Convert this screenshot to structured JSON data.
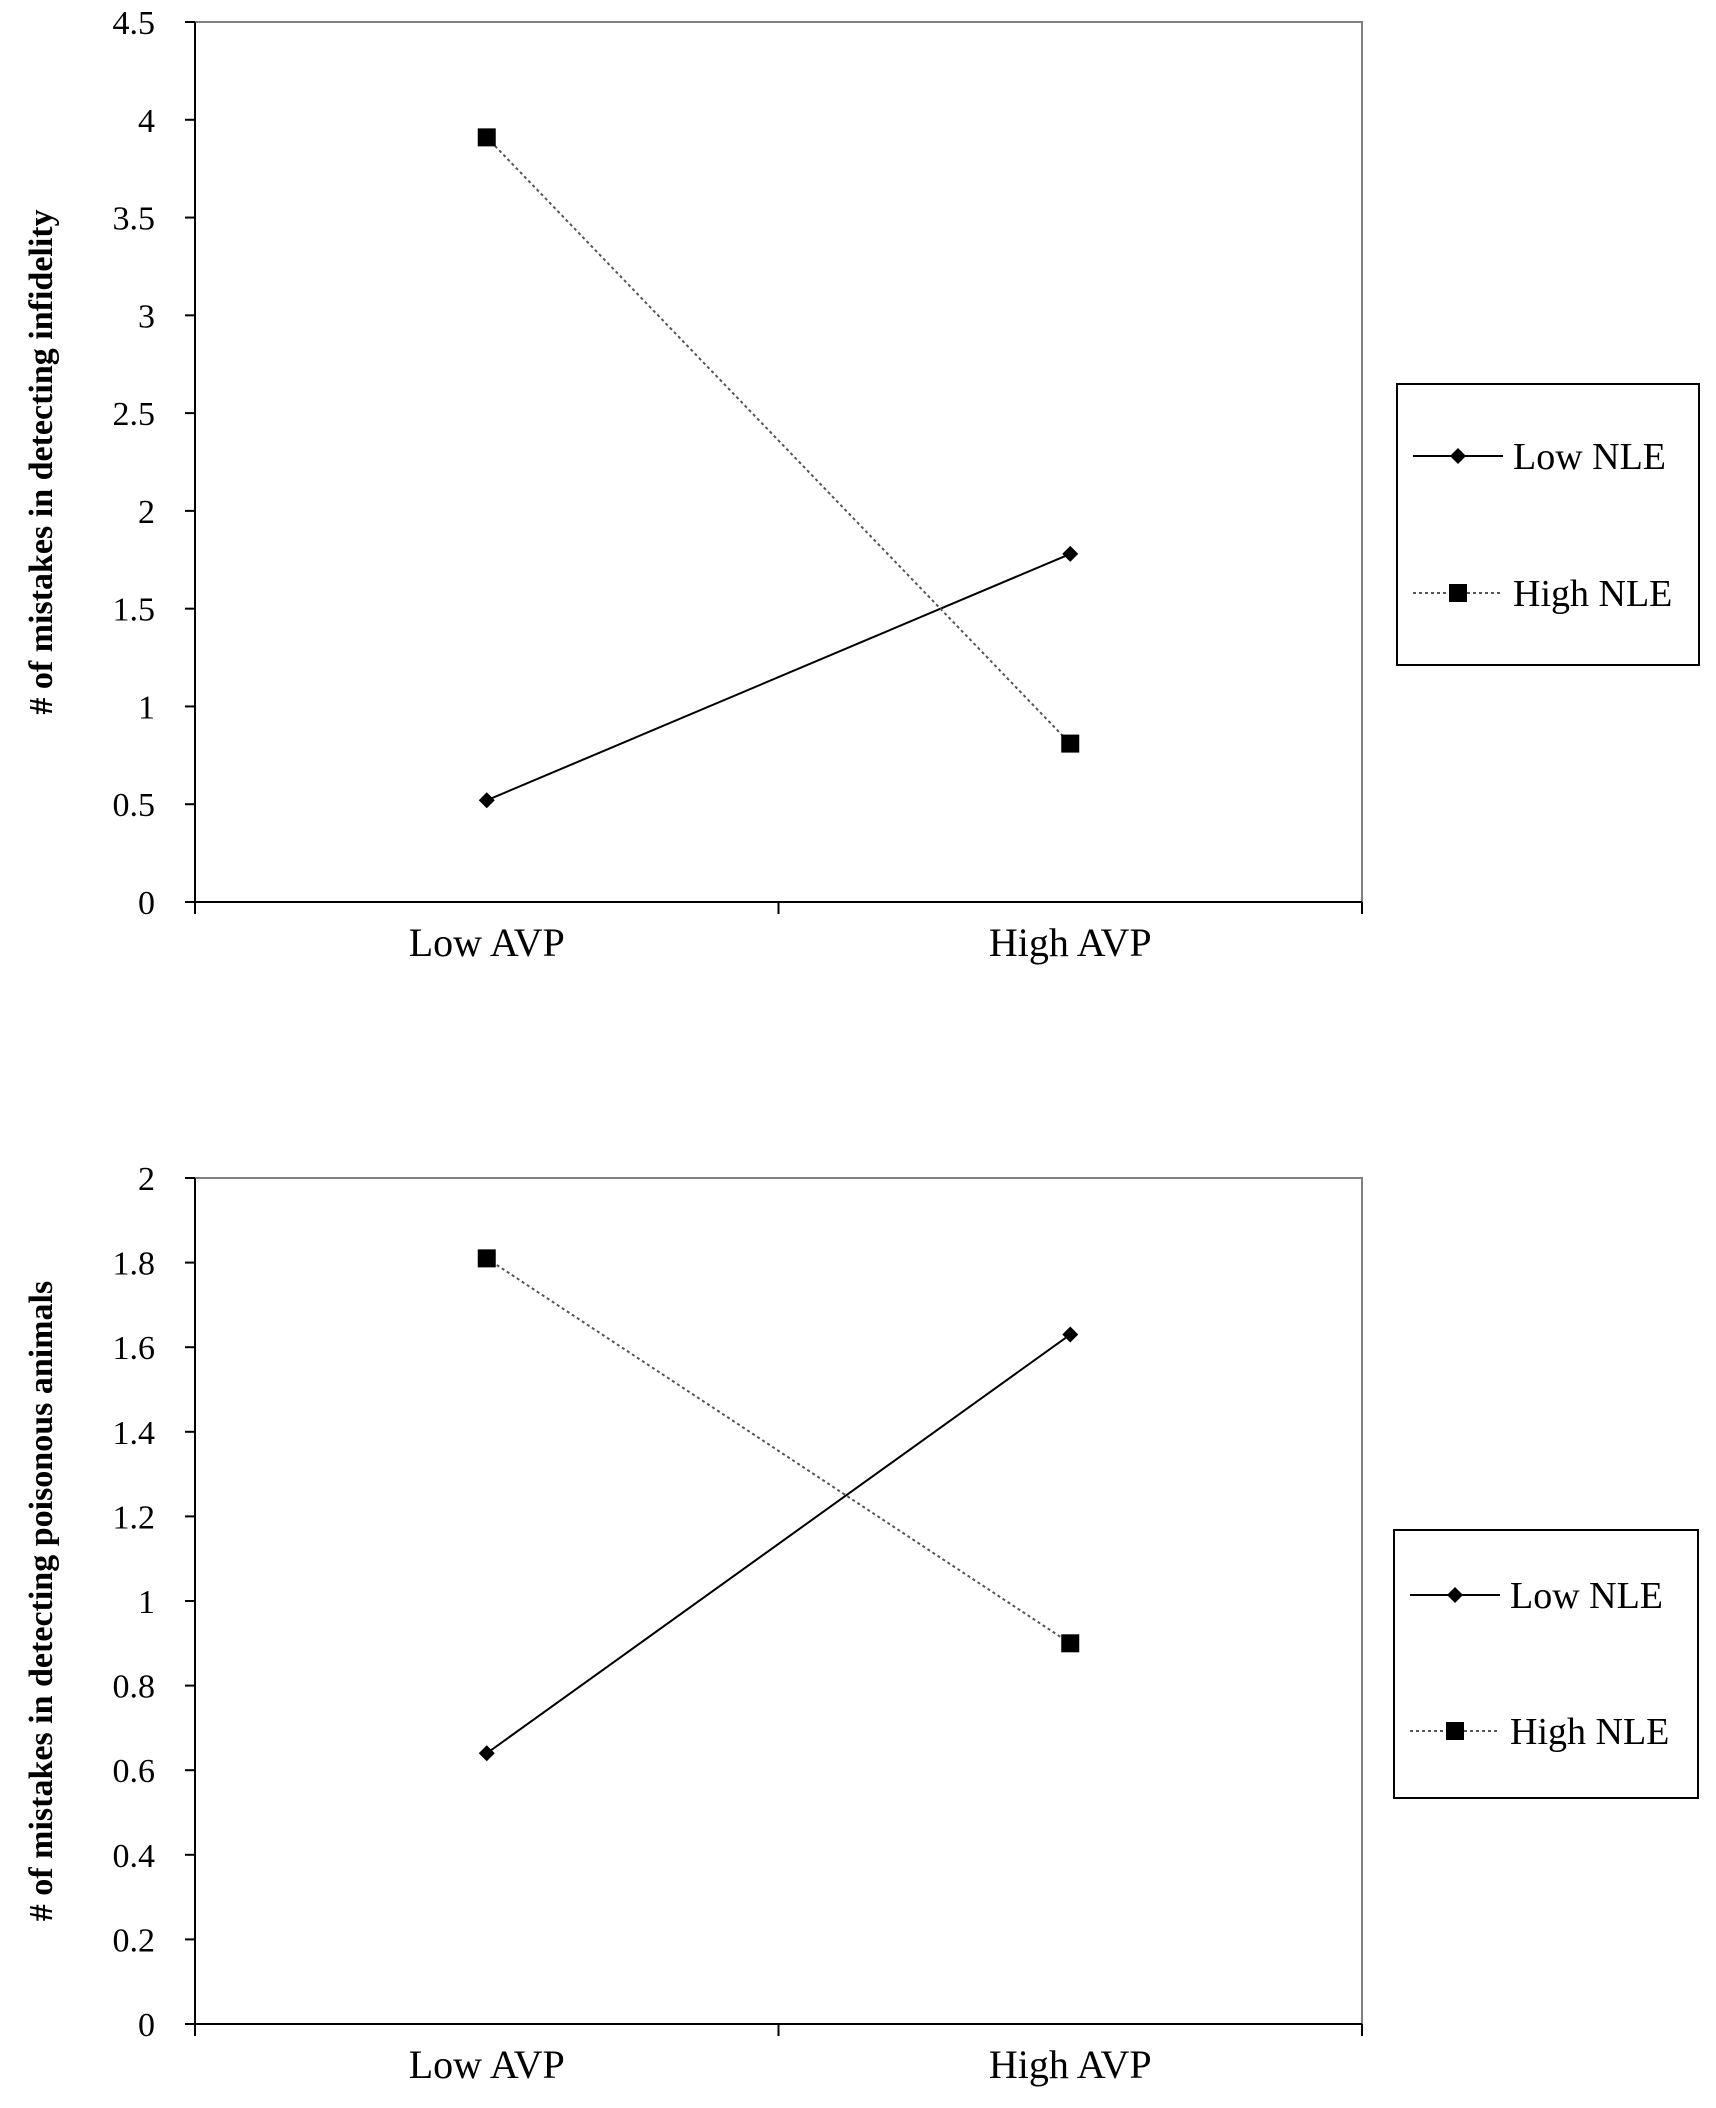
{
  "chart_data": [
    {
      "type": "line",
      "categories": [
        "Low AVP",
        "High AVP"
      ],
      "series": [
        {
          "name": "Low NLE",
          "values": [
            0.52,
            1.78
          ],
          "marker": "diamond",
          "dash": "solid"
        },
        {
          "name": "High NLE",
          "values": [
            3.91,
            0.81
          ],
          "marker": "square",
          "dash": "dotted"
        }
      ],
      "ylabel": "# of mistakes in detecting infidelity",
      "ylim": [
        0,
        4.5
      ],
      "yticks": [
        0,
        0.5,
        1,
        1.5,
        2,
        2.5,
        3,
        3.5,
        4,
        4.5
      ],
      "ytick_labels": [
        "0",
        "0.5",
        "1",
        "1.5",
        "2",
        "2.5",
        "3",
        "3.5",
        "4",
        "4.5"
      ],
      "legend_position": "right",
      "grid": false
    },
    {
      "type": "line",
      "categories": [
        "Low AVP",
        "High AVP"
      ],
      "series": [
        {
          "name": "Low NLE",
          "values": [
            0.64,
            1.63
          ],
          "marker": "diamond",
          "dash": "solid"
        },
        {
          "name": "High NLE",
          "values": [
            1.81,
            0.9
          ],
          "marker": "square",
          "dash": "dotted"
        }
      ],
      "ylabel": "# of mistakes in detecting poisonous animals",
      "ylim": [
        0,
        2
      ],
      "yticks": [
        0,
        0.2,
        0.4,
        0.6,
        0.8,
        1,
        1.2,
        1.4,
        1.6,
        1.8,
        2
      ],
      "ytick_labels": [
        "0",
        "0.2",
        "0.4",
        "0.6",
        "0.8",
        "1",
        "1.2",
        "1.4",
        "1.6",
        "1.8",
        "2"
      ],
      "legend_position": "right",
      "grid": false
    }
  ],
  "colors": {
    "line": "#000000",
    "background": "#ffffff"
  }
}
